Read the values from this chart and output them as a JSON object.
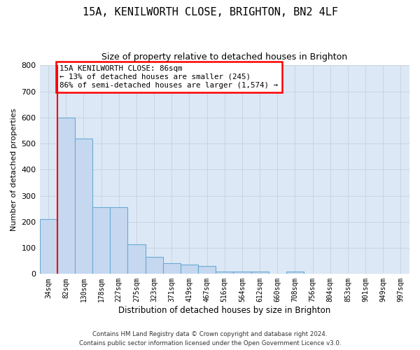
{
  "title_line1": "15A, KENILWORTH CLOSE, BRIGHTON, BN2 4LF",
  "title_line2": "Size of property relative to detached houses in Brighton",
  "xlabel": "Distribution of detached houses by size in Brighton",
  "ylabel": "Number of detached properties",
  "categories": [
    "34sqm",
    "82sqm",
    "130sqm",
    "178sqm",
    "227sqm",
    "275sqm",
    "323sqm",
    "371sqm",
    "419sqm",
    "467sqm",
    "516sqm",
    "564sqm",
    "612sqm",
    "660sqm",
    "708sqm",
    "756sqm",
    "804sqm",
    "853sqm",
    "901sqm",
    "949sqm",
    "997sqm"
  ],
  "values": [
    210,
    600,
    520,
    255,
    255,
    113,
    65,
    40,
    35,
    30,
    10,
    10,
    10,
    0,
    10,
    0,
    0,
    0,
    0,
    0,
    0
  ],
  "bar_color": "#c5d8f0",
  "bar_edge_color": "#6aaad4",
  "property_line_index": 1,
  "annotation_text": "15A KENILWORTH CLOSE: 86sqm\n← 13% of detached houses are smaller (245)\n86% of semi-detached houses are larger (1,574) →",
  "annotation_box_color": "white",
  "annotation_box_edge_color": "red",
  "property_line_color": "red",
  "grid_color": "#c8d4e0",
  "background_color": "#dce8f5",
  "ylim": [
    0,
    800
  ],
  "yticks": [
    0,
    100,
    200,
    300,
    400,
    500,
    600,
    700,
    800
  ],
  "title_fontsize": 11,
  "subtitle_fontsize": 9,
  "footer_line1": "Contains HM Land Registry data © Crown copyright and database right 2024.",
  "footer_line2": "Contains public sector information licensed under the Open Government Licence v3.0."
}
